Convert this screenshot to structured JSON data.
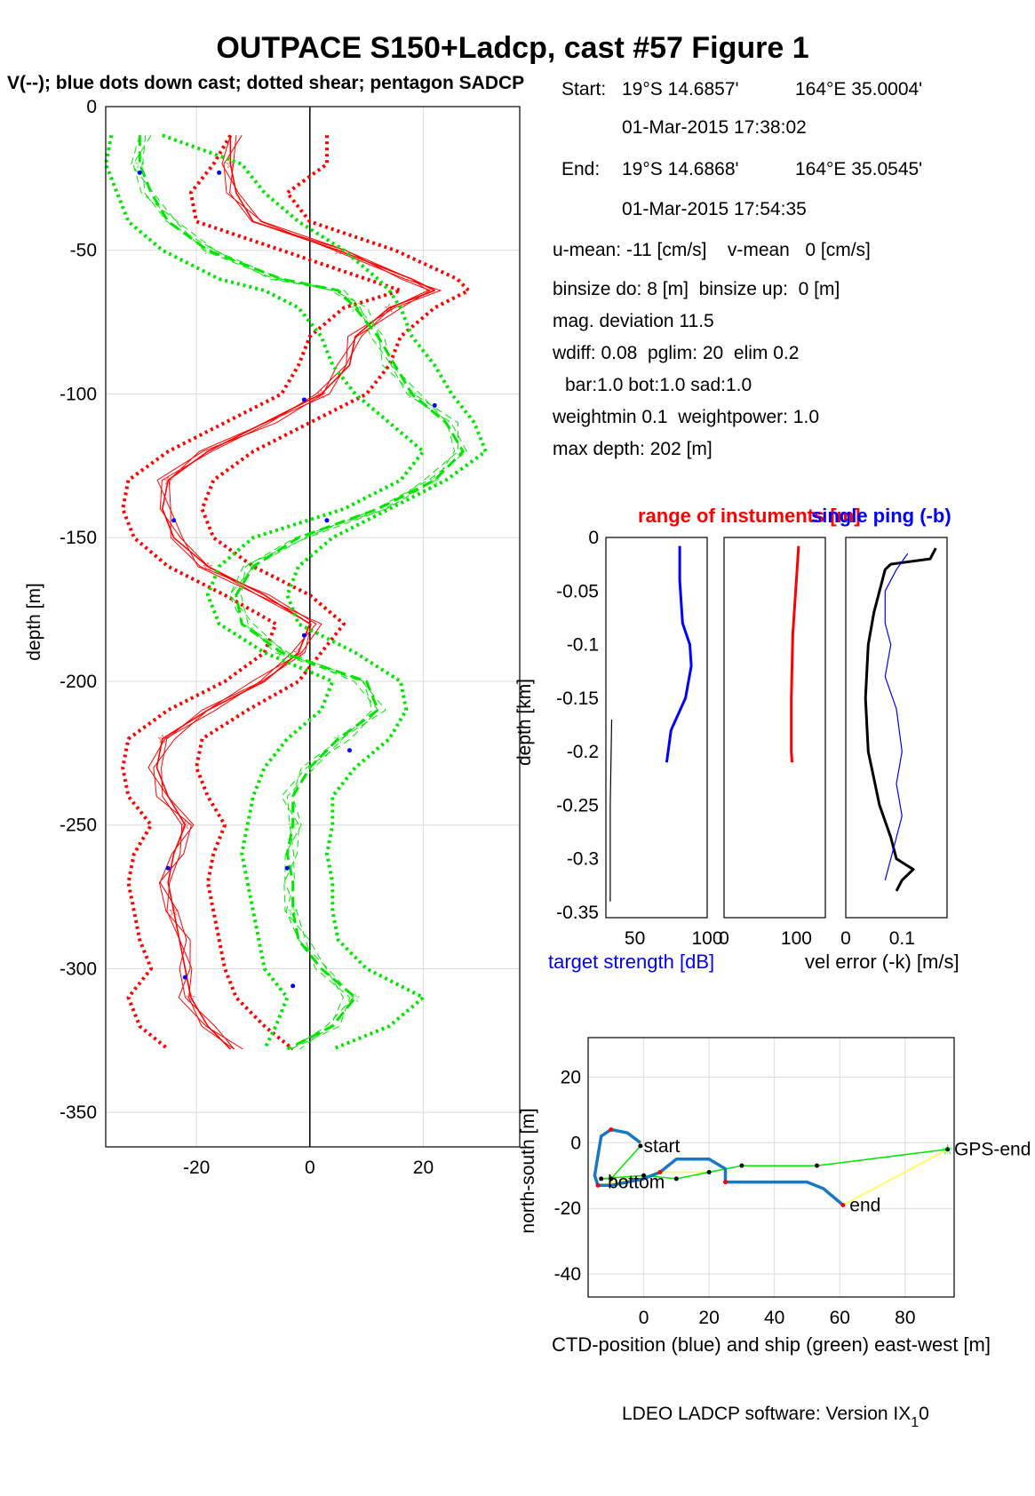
{
  "title": "OUTPACE S150+Ladcp, cast #57  Figure 1",
  "subtitle": "V(--); blue dots down cast; dotted shear; pentagon SADCP",
  "info": {
    "start_label": "Start:",
    "start_lat": "19°S 14.6857'",
    "start_lon": "164°E 35.0004'",
    "start_time": "01-Mar-2015 17:38:02",
    "end_label": "End:",
    "end_lat": "19°S 14.6868'",
    "end_lon": "164°E 35.0545'",
    "end_time": "01-Mar-2015 17:54:35",
    "means": "u-mean: -11 [cm/s]    v-mean   0 [cm/s]",
    "binsize": "binsize do: 8 [m]  binsize up:  0 [m]",
    "magdev": "mag. deviation 11.5",
    "wdiff": "wdiff: 0.08  pglim: 20  elim 0.2",
    "bar": "bar:1.0 bot:1.0 sad:1.0",
    "weight": "weightmin 0.1  weightpower: 1.0",
    "maxdepth": "max depth: 202 [m]"
  },
  "colors": {
    "red": "#ff0000",
    "green": "#00e600",
    "blue": "#0000ff",
    "black": "#000000",
    "ctd": "#1a78c2",
    "yellow": "#ffff33",
    "grid": "#dcdcdc"
  },
  "footer": "LDEO LADCP software: Version IX",
  "footer_sub": "1",
  "footer_tail": "0",
  "chart_data": [
    {
      "type": "line",
      "name": "main-profile",
      "ylabel": "depth [m]",
      "xlim": [
        -36,
        37
      ],
      "ylim": [
        -362,
        0
      ],
      "xticks": [
        -20,
        0,
        20
      ],
      "yticks": [
        0,
        -50,
        -100,
        -150,
        -200,
        -250,
        -300,
        -350
      ],
      "grid": true,
      "depth": [
        -10,
        -20,
        -30,
        -40,
        -50,
        -60,
        -64,
        -70,
        -80,
        -90,
        -100,
        -110,
        -120,
        -130,
        -140,
        -150,
        -160,
        -170,
        -180,
        -190,
        -200,
        -210,
        -220,
        -230,
        -240,
        -250,
        -260,
        -270,
        -280,
        -290,
        -300,
        -310,
        -320,
        -328
      ],
      "series": [
        {
          "color": "red",
          "style": "solid",
          "values": [
            -14,
            -14,
            -13,
            -10,
            5,
            18,
            22,
            14,
            8,
            7,
            2,
            -8,
            -18,
            -25,
            -26,
            -24,
            -18,
            -8,
            0,
            -2,
            -8,
            -18,
            -26,
            -27,
            -25,
            -22,
            -24,
            -25,
            -24,
            -23,
            -22,
            -21,
            -18,
            -14
          ]
        },
        {
          "color": "red",
          "style": "dotted-upper",
          "values": [
            3,
            3,
            -4,
            0,
            15,
            26,
            28,
            22,
            16,
            14,
            10,
            0,
            -10,
            -17,
            -19,
            -17,
            -10,
            0,
            6,
            2,
            -2,
            -11,
            -19,
            -20,
            -18,
            -15,
            -17,
            -18,
            -17,
            -16,
            -15,
            -13,
            -8,
            -3
          ]
        },
        {
          "color": "red",
          "style": "dotted-lower",
          "values": [
            -14,
            -17,
            -21,
            -20,
            -5,
            10,
            16,
            6,
            0,
            -2,
            -5,
            -15,
            -25,
            -32,
            -33,
            -31,
            -25,
            -15,
            -6,
            -8,
            -15,
            -25,
            -32,
            -33,
            -32,
            -28,
            -31,
            -32,
            -31,
            -30,
            -28,
            -32,
            -30,
            -25
          ]
        },
        {
          "color": "green",
          "style": "dashed",
          "values": [
            -30,
            -30,
            -28,
            -25,
            -18,
            -5,
            5,
            8,
            12,
            15,
            18,
            24,
            27,
            22,
            12,
            -2,
            -10,
            -13,
            -12,
            -5,
            10,
            12,
            5,
            0,
            -3,
            -3,
            -4,
            -3,
            -3,
            -2,
            2,
            8,
            4,
            -4
          ]
        },
        {
          "color": "green",
          "style": "dotted-upper",
          "values": [
            -26,
            -12,
            -8,
            -2,
            6,
            12,
            14,
            16,
            18,
            22,
            25,
            29,
            31,
            24,
            14,
            4,
            -2,
            -4,
            -2,
            8,
            16,
            17,
            14,
            8,
            4,
            4,
            3,
            4,
            4,
            5,
            10,
            20,
            14,
            4
          ]
        },
        {
          "color": "green",
          "style": "dotted-lower",
          "values": [
            -35,
            -36,
            -34,
            -32,
            -26,
            -16,
            -8,
            -2,
            2,
            4,
            8,
            14,
            20,
            16,
            6,
            -10,
            -16,
            -18,
            -16,
            -8,
            4,
            2,
            -4,
            -8,
            -10,
            -11,
            -12,
            -11,
            -10,
            -9,
            -8,
            -4,
            -6,
            -8
          ]
        }
      ],
      "blue_dots": [
        [
          -16,
          -23
        ],
        [
          -30,
          -23
        ],
        [
          -24,
          -144
        ],
        [
          3,
          -144
        ],
        [
          -1,
          -102
        ],
        [
          22,
          -104
        ],
        [
          -1,
          -184
        ],
        [
          7,
          -224
        ],
        [
          -25,
          -265
        ],
        [
          -4,
          -265
        ],
        [
          -22,
          -303
        ],
        [
          -3,
          -306
        ]
      ]
    },
    {
      "type": "line",
      "name": "target-strength",
      "title": "range of instuments [m]",
      "title2": "single ping (-b)",
      "ylabel": "depth [km]",
      "xlabel": "target strength [dB]",
      "xlim": [
        30,
        100
      ],
      "ylim": [
        -0.355,
        0
      ],
      "xticks": [
        50,
        100
      ],
      "xtick_labels": [
        "50",
        "100"
      ],
      "yticks": [
        0,
        -0.05,
        -0.1,
        -0.15,
        -0.2,
        -0.25,
        -0.3,
        -0.35
      ],
      "ytick_labels": [
        "0",
        "-0.05",
        "-0.1",
        "-0.15",
        "-0.2",
        "-0.25",
        "-0.3",
        "-0.35"
      ],
      "series": [
        {
          "color": "blue",
          "depth": [
            -0.008,
            -0.04,
            -0.08,
            -0.1,
            -0.12,
            -0.15,
            -0.18,
            -0.21
          ],
          "values": [
            81,
            81,
            83,
            88,
            89,
            85,
            75,
            72
          ]
        },
        {
          "color": "black",
          "depth": [
            -0.17,
            -0.25,
            -0.34
          ],
          "values": [
            34,
            33,
            33
          ]
        }
      ]
    },
    {
      "type": "line",
      "name": "range",
      "xlim": [
        0,
        140
      ],
      "ylim": [
        -0.355,
        0
      ],
      "xticks": [
        0,
        100
      ],
      "xtick_labels": [
        "0",
        "100"
      ],
      "series": [
        {
          "color": "red",
          "depth": [
            -0.008,
            -0.05,
            -0.09,
            -0.15,
            -0.2,
            -0.21
          ],
          "values": [
            103,
            99,
            95,
            93,
            93,
            94
          ]
        }
      ]
    },
    {
      "type": "line",
      "name": "velocity-error",
      "xlabel": "vel error (-k) [m/s]",
      "xlim": [
        0,
        0.18
      ],
      "ylim": [
        -0.355,
        0
      ],
      "xticks": [
        0,
        0.1
      ],
      "xtick_labels": [
        "0",
        "0.1"
      ],
      "series": [
        {
          "color": "black",
          "depth": [
            -0.01,
            -0.02,
            -0.025,
            -0.03,
            -0.05,
            -0.07,
            -0.1,
            -0.15,
            -0.2,
            -0.25,
            -0.28,
            -0.3,
            -0.31,
            -0.32,
            -0.33
          ],
          "values": [
            0.16,
            0.15,
            0.08,
            0.07,
            0.06,
            0.05,
            0.04,
            0.035,
            0.04,
            0.06,
            0.08,
            0.09,
            0.12,
            0.1,
            0.09
          ]
        },
        {
          "color": "blue",
          "depth": [
            -0.015,
            -0.03,
            -0.05,
            -0.08,
            -0.1,
            -0.13,
            -0.16,
            -0.2,
            -0.23,
            -0.26,
            -0.3,
            -0.32
          ],
          "values": [
            0.11,
            0.09,
            0.07,
            0.07,
            0.08,
            0.07,
            0.09,
            0.1,
            0.09,
            0.1,
            0.08,
            0.07
          ]
        }
      ]
    },
    {
      "type": "line",
      "name": "position",
      "ylabel": "north-south [m]",
      "xlabel": "CTD-position (blue) and ship (green) east-west [m]",
      "xlim": [
        -17,
        95
      ],
      "ylim": [
        -47,
        32
      ],
      "xticks": [
        0,
        20,
        40,
        60,
        80
      ],
      "yticks": [
        20,
        0,
        -20,
        -40
      ],
      "grid": true,
      "ctd_track": [
        [
          -1,
          0
        ],
        [
          -5,
          3
        ],
        [
          -10,
          4
        ],
        [
          -13,
          2
        ],
        [
          -14,
          -4
        ],
        [
          -15,
          -10
        ],
        [
          -14,
          -13
        ],
        [
          -10,
          -13
        ],
        [
          -5,
          -12
        ],
        [
          0,
          -11
        ],
        [
          5,
          -9
        ],
        [
          10,
          -5
        ],
        [
          20,
          -5
        ],
        [
          25,
          -8
        ],
        [
          25,
          -12
        ],
        [
          40,
          -12
        ],
        [
          50,
          -12
        ],
        [
          55,
          -14
        ],
        [
          61,
          -19
        ]
      ],
      "ship_track": [
        [
          -1,
          -1
        ],
        [
          -10,
          -11
        ],
        [
          -13,
          -11
        ],
        [
          0,
          -10
        ],
        [
          10,
          -11
        ],
        [
          20,
          -9
        ],
        [
          30,
          -7
        ],
        [
          53,
          -7
        ],
        [
          93,
          -2
        ]
      ],
      "labels": [
        {
          "text": "start",
          "x": 0,
          "y": -1
        },
        {
          "text": "bottom",
          "x": -11,
          "y": -12
        },
        {
          "text": "end",
          "x": 63,
          "y": -19
        },
        {
          "text": "GPS-end",
          "x": 95,
          "y": -2
        }
      ]
    }
  ]
}
